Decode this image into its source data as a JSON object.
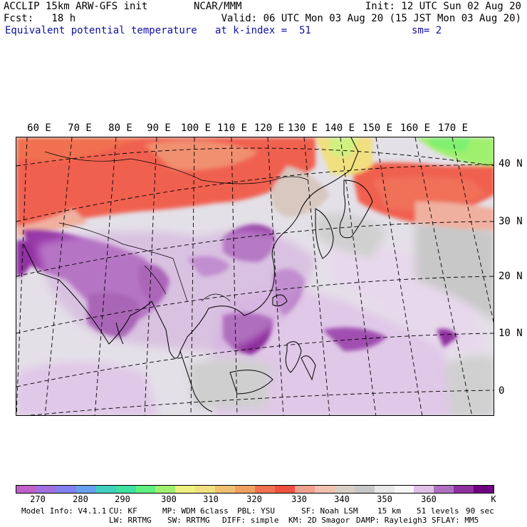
{
  "header": {
    "left": [
      "ACCLIP 15km ARW-GFS init",
      "Fcst:   18 h"
    ],
    "center": "NCAR/MMM",
    "init": "Init: 12 UTC Sun 02 Aug 20",
    "valid": "Valid: 06 UTC Mon 03 Aug 20 (15 JST Mon 03 Aug 20)",
    "field": "Equivalent potential temperature",
    "level": "at k-index =  51",
    "smooth": "sm= 2"
  },
  "map": {
    "lon_labels": [
      "60 E",
      "70 E",
      "80 E",
      "90 E",
      "100 E",
      "110 E",
      "120 E",
      "130 E",
      "140 E",
      "150 E",
      "160 E",
      "170 E"
    ],
    "lat_labels": [
      "40 N",
      "30 N",
      "20 N",
      "10 N",
      "0"
    ]
  },
  "colorbar": {
    "colors": [
      "#c060c8",
      "#a070e0",
      "#8080f0",
      "#6aa0f0",
      "#40d0c0",
      "#40e0a0",
      "#60f080",
      "#a0f070",
      "#f0f080",
      "#f0e080",
      "#f0c070",
      "#f0a060",
      "#f07050",
      "#f05040",
      "#f0a090",
      "#f0c0b0",
      "#d8d0c8",
      "#c8c8c8",
      "#e8e8e8",
      "#f8f8f8",
      "#e0c0e8",
      "#b070c0",
      "#9030a0",
      "#700080"
    ],
    "labels": [
      "270",
      "280",
      "290",
      "300",
      "310",
      "320",
      "330",
      "340",
      "350",
      "360"
    ],
    "unit": "K"
  },
  "footer": {
    "line1": [
      "Model Info: V4.1.1",
      "CU: KF",
      "MP: WDM 6class",
      "PBL: YSU",
      "SF: Noah LSM",
      "15 km",
      "51 levels",
      "90 sec"
    ],
    "line2": [
      "LW: RRTMG",
      "SW: RRTMG",
      "DIFF: simple",
      "KM: 2D Smagor",
      "DAMP: Rayleigh3",
      "SFLAY: MM5"
    ]
  }
}
